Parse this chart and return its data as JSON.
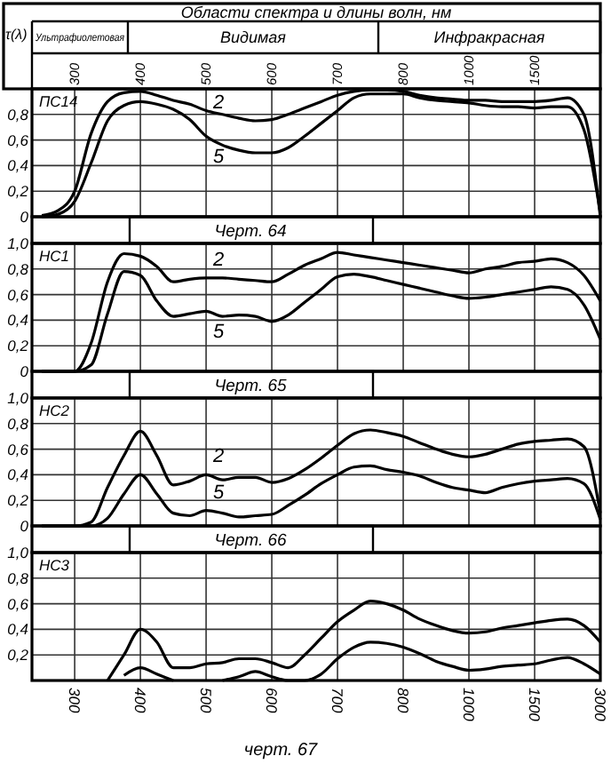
{
  "chart_data": [
    {
      "type": "line",
      "title": "ПС14",
      "ylabel": "τ(λ)",
      "x2label": "Области спектра и длины волн, нм",
      "annotations": [
        "Ультрафиолетовая",
        "Видимая",
        "Инфракрасная",
        "Черт. 64"
      ],
      "categories": [
        null,
        null,
        "300",
        null,
        null,
        null,
        "400",
        null,
        null,
        null,
        "500",
        null,
        null,
        null,
        "600",
        null,
        null,
        null,
        "700",
        null,
        null,
        null,
        "800",
        null,
        null,
        null,
        "1000",
        null,
        null,
        null,
        "1500",
        null,
        null,
        null,
        null
      ],
      "ylim": [
        0,
        1
      ],
      "yticks": [
        {
          "value": 0,
          "label": "0"
        },
        {
          "value": 0.2,
          "label": "0,2"
        },
        {
          "value": 0.4,
          "label": "0,4"
        },
        {
          "value": 0.6,
          "label": "0,6"
        },
        {
          "value": 0.8,
          "label": "0,8"
        }
      ],
      "grid": true,
      "marker": "none",
      "line_style": "solid",
      "series": [
        {
          "name": "2",
          "color": "#000000",
          "values": [
            0.01,
            0.05,
            0.2,
            0.65,
            0.9,
            0.97,
            0.98,
            0.95,
            0.91,
            0.88,
            0.83,
            0.8,
            0.77,
            0.75,
            0.76,
            0.8,
            0.85,
            0.9,
            0.95,
            0.98,
            0.99,
            0.99,
            0.98,
            0.95,
            0.93,
            0.92,
            0.91,
            0.91,
            0.9,
            0.9,
            0.9,
            0.91,
            0.93,
            0.8,
            0
          ]
        },
        {
          "name": "5",
          "color": "#000000",
          "values": [
            0,
            0.02,
            0.12,
            0.42,
            0.75,
            0.87,
            0.9,
            0.88,
            0.84,
            0.76,
            0.63,
            0.56,
            0.52,
            0.5,
            0.5,
            0.54,
            0.63,
            0.73,
            0.83,
            0.93,
            0.96,
            0.96,
            0.96,
            0.93,
            0.91,
            0.9,
            0.89,
            0.87,
            0.86,
            0.86,
            0.85,
            0.86,
            0.86,
            0.68,
            0.03
          ]
        }
      ]
    },
    {
      "type": "line",
      "title": "НС1",
      "annotations": [
        "Черт. 65"
      ],
      "categories": [
        null,
        null,
        "300",
        null,
        null,
        null,
        "400",
        null,
        null,
        null,
        "500",
        null,
        null,
        null,
        "600",
        null,
        null,
        null,
        "700",
        null,
        null,
        null,
        "800",
        null,
        null,
        null,
        "1000",
        null,
        null,
        null,
        "1500",
        null,
        null,
        null,
        "3000"
      ],
      "tick_labels": "y",
      "ylim": [
        0,
        1
      ],
      "yticks": [
        {
          "value": 0,
          "label": "0"
        },
        {
          "value": 0.2,
          "label": "0,2"
        },
        {
          "value": 0.4,
          "label": "0,4"
        },
        {
          "value": 0.6,
          "label": "0,6"
        },
        {
          "value": 0.8,
          "label": "0,8"
        },
        {
          "value": 1,
          "label": "1,0"
        }
      ],
      "grid": true,
      "marker": "none",
      "line_style": "solid",
      "series": [
        {
          "name": "2",
          "color": "#000000",
          "values": [
            0,
            0,
            0,
            0.22,
            0.7,
            0.92,
            0.9,
            0.82,
            0.7,
            0.72,
            0.73,
            0.73,
            0.72,
            0.71,
            0.7,
            0.76,
            0.83,
            0.88,
            0.93,
            0.91,
            0.89,
            0.87,
            0.85,
            0.83,
            0.81,
            0.79,
            0.77,
            0.8,
            0.82,
            0.85,
            0.86,
            0.88,
            0.85,
            0.75,
            0.55
          ]
        },
        {
          "name": "5",
          "color": "#000000",
          "values": [
            0,
            0,
            0,
            0.05,
            0.45,
            0.78,
            0.75,
            0.55,
            0.43,
            0.45,
            0.47,
            0.43,
            0.44,
            0.43,
            0.39,
            0.44,
            0.54,
            0.64,
            0.74,
            0.76,
            0.74,
            0.71,
            0.68,
            0.65,
            0.62,
            0.59,
            0.57,
            0.58,
            0.6,
            0.62,
            0.64,
            0.66,
            0.64,
            0.52,
            0.25
          ]
        }
      ]
    },
    {
      "type": "line",
      "title": "НС2",
      "annotations": [
        "Черт. 66"
      ],
      "categories": [
        null,
        null,
        "300",
        null,
        null,
        null,
        "400",
        null,
        null,
        null,
        "500",
        null,
        null,
        null,
        "600",
        null,
        null,
        null,
        "700",
        null,
        null,
        null,
        "800",
        null,
        null,
        null,
        "1000",
        null,
        null,
        null,
        "1500",
        null,
        null,
        null,
        "3000"
      ],
      "tick_labels": "y",
      "ylim": [
        0,
        1
      ],
      "yticks": [
        {
          "value": 0,
          "label": "0"
        },
        {
          "value": 0.2,
          "label": "0,2"
        },
        {
          "value": 0.4,
          "label": "0,4"
        },
        {
          "value": 0.6,
          "label": "0,6"
        },
        {
          "value": 0.8,
          "label": "0,8"
        },
        {
          "value": 1,
          "label": "1,0"
        }
      ],
      "grid": true,
      "marker": "none",
      "line_style": "solid",
      "series": [
        {
          "name": "2",
          "color": "#000000",
          "values": [
            0,
            0,
            0,
            0.03,
            0.3,
            0.55,
            0.74,
            0.55,
            0.32,
            0.35,
            0.4,
            0.36,
            0.38,
            0.38,
            0.34,
            0.37,
            0.44,
            0.53,
            0.63,
            0.72,
            0.75,
            0.73,
            0.7,
            0.65,
            0.6,
            0.56,
            0.54,
            0.56,
            0.6,
            0.64,
            0.66,
            0.67,
            0.68,
            0.62,
            0.1
          ]
        },
        {
          "name": "5",
          "color": "#000000",
          "values": [
            0,
            0,
            0,
            0,
            0.06,
            0.25,
            0.4,
            0.25,
            0.1,
            0.08,
            0.12,
            0.1,
            0.07,
            0.08,
            0.09,
            0.16,
            0.24,
            0.33,
            0.4,
            0.46,
            0.47,
            0.44,
            0.42,
            0.39,
            0.34,
            0.3,
            0.28,
            0.26,
            0.3,
            0.33,
            0.35,
            0.36,
            0.37,
            0.33,
            0.05
          ]
        }
      ]
    },
    {
      "type": "line",
      "title": "НС3",
      "annotations": [
        "черт. 67"
      ],
      "categories": [
        null,
        null,
        "300",
        null,
        null,
        null,
        "400",
        null,
        null,
        null,
        "500",
        null,
        null,
        null,
        "600",
        null,
        null,
        null,
        "700",
        null,
        null,
        null,
        "800",
        null,
        null,
        null,
        "1000",
        null,
        null,
        null,
        "1500",
        null,
        null,
        null,
        "3000"
      ],
      "ylim": [
        0,
        1
      ],
      "yticks": [
        {
          "value": 0.2,
          "label": "0,2"
        },
        {
          "value": 0.4,
          "label": "0,4"
        },
        {
          "value": 0.6,
          "label": "0,6"
        },
        {
          "value": 0.8,
          "label": "0,8"
        },
        {
          "value": 1,
          "label": "1,0"
        }
      ],
      "grid": true,
      "marker": "none",
      "line_style": "solid",
      "series": [
        {
          "color": "#000000",
          "values": [
            null,
            null,
            null,
            null,
            0,
            0.2,
            0.4,
            0.3,
            0.1,
            0.1,
            0.13,
            0.14,
            0.17,
            0.17,
            0.14,
            0.1,
            0.2,
            0.33,
            0.46,
            0.55,
            0.62,
            0.6,
            0.55,
            0.48,
            0.43,
            0.39,
            0.37,
            0.38,
            0.41,
            0.43,
            0.45,
            0.47,
            0.48,
            0.43,
            0.3
          ]
        },
        {
          "color": "#000000",
          "values": [
            null,
            null,
            null,
            null,
            null,
            0.04,
            0.1,
            0.05,
            0,
            null,
            null,
            0,
            0.03,
            0.07,
            0.03,
            0,
            0,
            0.05,
            0.17,
            0.26,
            0.3,
            0.29,
            0.26,
            0.21,
            0.15,
            0.11,
            0.08,
            0.09,
            0.11,
            0.12,
            0.13,
            0.16,
            0.18,
            0.13,
            0.05
          ]
        }
      ]
    }
  ]
}
